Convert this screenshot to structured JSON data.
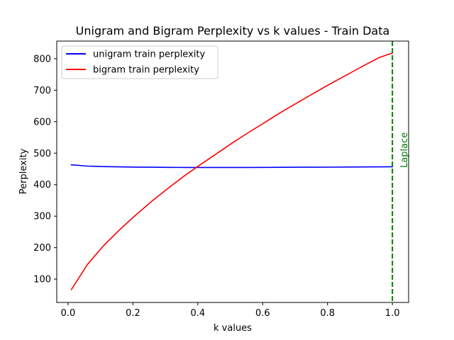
{
  "chart_data": {
    "type": "line",
    "title": "Unigram and Bigram Perplexity vs k values - Train Data",
    "xlabel": "k values",
    "ylabel": "Perplexity",
    "xlim": [
      -0.035,
      1.05
    ],
    "ylim": [
      26,
      856
    ],
    "xticks": [
      0.0,
      0.2,
      0.4,
      0.6,
      0.8,
      1.0
    ],
    "xtick_labels": [
      "0.0",
      "0.2",
      "0.4",
      "0.6",
      "0.8",
      "1.0"
    ],
    "yticks": [
      100,
      200,
      300,
      400,
      500,
      600,
      700,
      800
    ],
    "ytick_labels": [
      "100",
      "200",
      "300",
      "400",
      "500",
      "600",
      "700",
      "800"
    ],
    "grid": false,
    "legend_placement": "upper-left",
    "series": [
      {
        "name": "unigram train perplexity",
        "color": "#0000ff",
        "x": [
          0.01,
          0.06,
          0.11,
          0.16,
          0.21,
          0.26,
          0.31,
          0.36,
          0.41,
          0.46,
          0.51,
          0.56,
          0.61,
          0.66,
          0.71,
          0.76,
          0.81,
          0.86,
          0.91,
          0.96,
          1.0
        ],
        "values": [
          463,
          459,
          457.5,
          456.5,
          455.8,
          455.3,
          455,
          454.8,
          454.7,
          454.7,
          454.7,
          454.8,
          454.9,
          455.1,
          455.3,
          455.5,
          455.7,
          456,
          456.3,
          456.6,
          457
        ]
      },
      {
        "name": "bigram train perplexity",
        "color": "#ff0000",
        "x": [
          0.01,
          0.06,
          0.11,
          0.16,
          0.21,
          0.26,
          0.31,
          0.36,
          0.41,
          0.46,
          0.51,
          0.56,
          0.61,
          0.66,
          0.71,
          0.76,
          0.81,
          0.86,
          0.91,
          0.96,
          1.0
        ],
        "values": [
          67,
          147,
          207,
          258,
          305,
          349,
          390,
          429,
          465,
          500,
          535,
          568,
          600,
          632,
          662,
          692,
          721,
          749,
          777,
          804,
          818
        ]
      }
    ],
    "vline": {
      "x": 1.0,
      "color": "#008000",
      "style": "dashed",
      "label": "Laplace"
    }
  }
}
